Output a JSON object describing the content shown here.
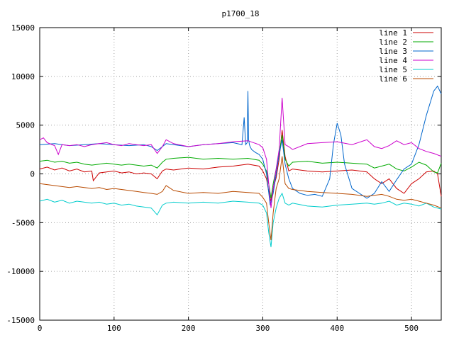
{
  "chart_data": {
    "type": "line",
    "title": "p1700_18",
    "xlabel": "",
    "ylabel": "",
    "xlim": [
      0,
      540
    ],
    "ylim": [
      -15000,
      15000
    ],
    "xticks": [
      0,
      100,
      200,
      300,
      400,
      500
    ],
    "yticks": [
      -15000,
      -10000,
      -5000,
      0,
      5000,
      10000,
      15000
    ],
    "grid": true,
    "legend": "top-right",
    "series": [
      {
        "name": "line 1",
        "color": "#cc0000",
        "x": [
          0,
          10,
          20,
          30,
          40,
          50,
          60,
          70,
          72,
          80,
          90,
          100,
          110,
          120,
          130,
          140,
          150,
          158,
          165,
          170,
          180,
          200,
          220,
          240,
          260,
          280,
          295,
          300,
          305,
          308,
          311,
          314,
          318,
          322,
          326,
          330,
          335,
          340,
          360,
          380,
          400,
          420,
          440,
          450,
          460,
          470,
          480,
          490,
          500,
          510,
          520,
          530,
          535,
          540
        ],
        "y": [
          500,
          700,
          400,
          600,
          300,
          500,
          200,
          300,
          -700,
          100,
          200,
          300,
          100,
          200,
          0,
          100,
          0,
          -500,
          300,
          500,
          400,
          600,
          500,
          700,
          800,
          1000,
          800,
          300,
          -500,
          -1800,
          -2800,
          -1500,
          -400,
          1500,
          4500,
          1800,
          300,
          500,
          300,
          200,
          300,
          400,
          200,
          -500,
          -1000,
          -500,
          -1500,
          -2000,
          -1000,
          -500,
          200,
          300,
          0,
          -2300
        ]
      },
      {
        "name": "line 2",
        "color": "#00aa00",
        "x": [
          0,
          10,
          20,
          30,
          40,
          50,
          60,
          70,
          80,
          90,
          100,
          110,
          120,
          130,
          140,
          150,
          158,
          165,
          170,
          180,
          200,
          220,
          240,
          260,
          280,
          295,
          300,
          305,
          308,
          311,
          314,
          318,
          322,
          326,
          330,
          335,
          340,
          360,
          380,
          400,
          420,
          440,
          450,
          460,
          470,
          480,
          490,
          500,
          510,
          520,
          530,
          535,
          540
        ],
        "y": [
          1300,
          1400,
          1200,
          1300,
          1100,
          1200,
          1000,
          900,
          1000,
          1100,
          1000,
          900,
          1000,
          900,
          800,
          900,
          600,
          1200,
          1500,
          1600,
          1700,
          1500,
          1600,
          1500,
          1600,
          1400,
          1000,
          300,
          -1000,
          -2500,
          -1000,
          500,
          2000,
          4000,
          1500,
          800,
          1200,
          1300,
          1100,
          1200,
          1100,
          1000,
          600,
          800,
          1000,
          500,
          300,
          700,
          1200,
          900,
          200,
          100,
          1100
        ]
      },
      {
        "name": "line 3",
        "color": "#0066cc",
        "x": [
          0,
          20,
          40,
          60,
          80,
          100,
          120,
          140,
          150,
          158,
          165,
          170,
          180,
          200,
          220,
          240,
          260,
          272,
          275,
          277,
          279,
          280,
          281,
          282,
          283,
          285,
          290,
          295,
          300,
          305,
          310,
          314,
          318,
          322,
          326,
          330,
          335,
          340,
          350,
          360,
          370,
          380,
          390,
          395,
          400,
          405,
          410,
          420,
          430,
          440,
          450,
          460,
          470,
          480,
          490,
          500,
          510,
          520,
          530,
          535,
          540
        ],
        "y": [
          3000,
          3100,
          2900,
          3000,
          3100,
          3000,
          2900,
          3000,
          2800,
          2400,
          2800,
          3100,
          3000,
          2800,
          3000,
          3100,
          3200,
          3000,
          5800,
          3000,
          3200,
          8500,
          3500,
          3000,
          2800,
          2500,
          2200,
          2000,
          1500,
          0,
          -3200,
          -2000,
          0,
          2000,
          3500,
          1000,
          -500,
          -1500,
          -2000,
          -2200,
          -2100,
          -2300,
          -500,
          3000,
          5200,
          4000,
          1000,
          -1500,
          -2000,
          -2500,
          -2000,
          -800,
          -1800,
          -600,
          500,
          1000,
          3000,
          6000,
          8500,
          9000,
          8200
        ]
      },
      {
        "name": "line 4",
        "color": "#cc00cc",
        "x": [
          0,
          5,
          10,
          20,
          25,
          30,
          40,
          50,
          60,
          70,
          80,
          90,
          100,
          110,
          120,
          130,
          140,
          150,
          158,
          165,
          170,
          180,
          200,
          220,
          240,
          260,
          280,
          295,
          300,
          305,
          308,
          311,
          314,
          318,
          322,
          326,
          330,
          335,
          340,
          360,
          380,
          400,
          420,
          440,
          450,
          460,
          470,
          480,
          490,
          500,
          510,
          520,
          530,
          540
        ],
        "y": [
          3500,
          3700,
          3200,
          2900,
          2000,
          3000,
          2900,
          3000,
          2800,
          3000,
          3100,
          3200,
          3000,
          2900,
          3100,
          3000,
          2900,
          3000,
          2100,
          2800,
          3500,
          3100,
          2800,
          3000,
          3100,
          3300,
          3400,
          3000,
          2700,
          1500,
          -1000,
          -3500,
          -1500,
          500,
          2500,
          7800,
          3000,
          2800,
          2500,
          3100,
          3200,
          3300,
          3000,
          3500,
          2800,
          2600,
          2900,
          3400,
          3000,
          3200,
          2600,
          2300,
          2100,
          1800
        ]
      },
      {
        "name": "line 5",
        "color": "#00cccc",
        "x": [
          0,
          10,
          20,
          30,
          40,
          50,
          60,
          70,
          80,
          90,
          100,
          110,
          120,
          130,
          140,
          150,
          158,
          165,
          170,
          180,
          200,
          220,
          240,
          260,
          280,
          295,
          300,
          305,
          308,
          311,
          314,
          318,
          322,
          326,
          330,
          335,
          340,
          360,
          380,
          400,
          420,
          440,
          450,
          460,
          470,
          480,
          490,
          500,
          510,
          520,
          530,
          540
        ],
        "y": [
          -2800,
          -2600,
          -2900,
          -2700,
          -3000,
          -2800,
          -2900,
          -3000,
          -2900,
          -3100,
          -3000,
          -3200,
          -3100,
          -3300,
          -3400,
          -3500,
          -4200,
          -3200,
          -3000,
          -2900,
          -3000,
          -2900,
          -3000,
          -2800,
          -2900,
          -3000,
          -3200,
          -4000,
          -6000,
          -7500,
          -5000,
          -3500,
          -2500,
          -2000,
          -3000,
          -3200,
          -3000,
          -3300,
          -3400,
          -3200,
          -3100,
          -3000,
          -3100,
          -3000,
          -2800,
          -3200,
          -3000,
          -3100,
          -3300,
          -3000,
          -3400,
          -3600
        ]
      },
      {
        "name": "line 6",
        "color": "#b84a00",
        "x": [
          0,
          10,
          20,
          30,
          40,
          50,
          60,
          70,
          80,
          90,
          100,
          110,
          120,
          130,
          140,
          150,
          158,
          165,
          170,
          180,
          200,
          220,
          240,
          260,
          280,
          295,
          300,
          305,
          308,
          311,
          314,
          318,
          322,
          326,
          330,
          335,
          340,
          360,
          380,
          400,
          420,
          440,
          450,
          460,
          470,
          480,
          490,
          500,
          510,
          520,
          530,
          540
        ],
        "y": [
          -1000,
          -1100,
          -1200,
          -1300,
          -1400,
          -1300,
          -1400,
          -1500,
          -1400,
          -1600,
          -1500,
          -1600,
          -1700,
          -1800,
          -1900,
          -2000,
          -2100,
          -1800,
          -1200,
          -1700,
          -2000,
          -1900,
          -2000,
          -1800,
          -1900,
          -2000,
          -2400,
          -3000,
          -5000,
          -6800,
          -4000,
          -1500,
          -500,
          1800,
          -1000,
          -1500,
          -1600,
          -1800,
          -1900,
          -2000,
          -2100,
          -2300,
          -2200,
          -2100,
          -2300,
          -2600,
          -2700,
          -2600,
          -2800,
          -3000,
          -3200,
          -3500
        ]
      }
    ]
  }
}
